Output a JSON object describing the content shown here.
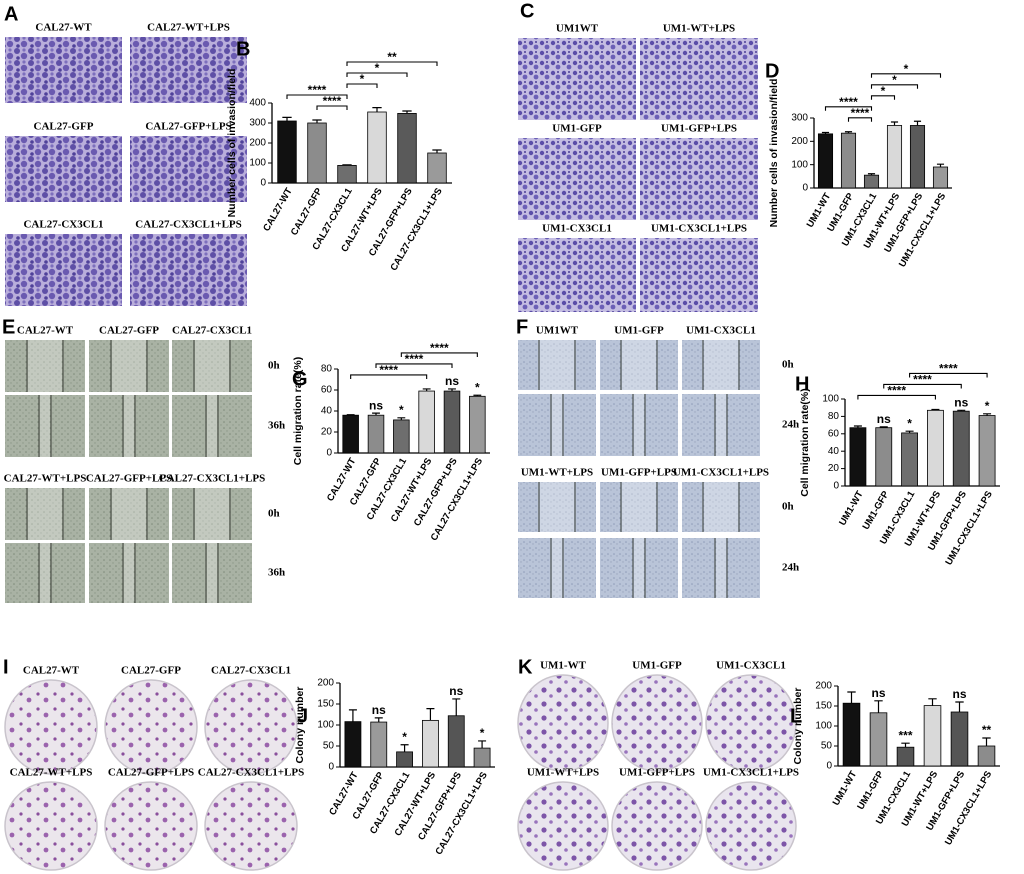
{
  "image_panels": [
    {
      "letter": "A",
      "labels": [
        "CAL27-WT",
        "CAL27-WT+LPS",
        "CAL27-GFP",
        "CAL27-GFP+LPS",
        "CAL27-CX3CL1",
        "CAL27-CX3CL1+LPS"
      ]
    },
    {
      "letter": "C",
      "labels": [
        "UM1WT",
        "UM1-WT+LPS",
        "UM1-GFP",
        "UM1-GFP+LPS",
        "UM1-CX3CL1",
        "UM1-CX3CL1+LPS"
      ]
    },
    {
      "letter": "E",
      "labels": [
        "CAL27-WT",
        "CAL27-GFP",
        "CAL27-CX3CL1",
        "CAL27-WT+LPS",
        "CAL27-GFP+LPS",
        "CAL27-CX3CL1+LPS"
      ],
      "times": [
        "0h",
        "36h",
        "0h",
        "36h"
      ]
    },
    {
      "letter": "F",
      "labels": [
        "UM1WT",
        "UM1-GFP",
        "UM1-CX3CL1",
        "UM1-WT+LPS",
        "UM1-GFP+LPS",
        "UM1-CX3CL1+LPS"
      ],
      "times": [
        "0h",
        "24h",
        "0h",
        "24h"
      ]
    },
    {
      "letter": "I",
      "labels": [
        "CAL27-WT",
        "CAL27-GFP",
        "CAL27-CX3CL1",
        "CAL27-WT+LPS",
        "CAL27-GFP+LPS",
        "CAL27-CX3CL1+LPS"
      ]
    },
    {
      "letter": "K",
      "labels": [
        "UM1-WT",
        "UM1-GFP",
        "UM1-CX3CL1",
        "UM1-WT+LPS",
        "UM1-GFP+LPS",
        "UM1-CX3CL1+LPS"
      ]
    }
  ],
  "chart_data": [
    {
      "type": "bar",
      "letter": "B",
      "ylabel": "Number cells of invasion/field",
      "categories": [
        "CAL27-WT",
        "CAL27-GFP",
        "CAL27-CX3CL1",
        "CAL27-WT+LPS",
        "CAL27-GFP+LPS",
        "CAL27-CX3CL1+LPS"
      ],
      "values": [
        310,
        300,
        88,
        355,
        348,
        150
      ],
      "errors": [
        18,
        15,
        3,
        22,
        12,
        15
      ],
      "colors": [
        "#111111",
        "#8c8c8c",
        "#6e6e6e",
        "#d9d9d9",
        "#5a5a5a",
        "#9a9a9a"
      ],
      "ylim": [
        0,
        400
      ],
      "yticks": [
        0,
        100,
        200,
        300,
        400
      ],
      "brackets": [
        {
          "from": 1,
          "to": 2,
          "text": "****"
        },
        {
          "from": 0,
          "to": 2,
          "text": "****"
        },
        {
          "from": 2,
          "to": 3,
          "text": "*"
        },
        {
          "from": 2,
          "to": 4,
          "text": "*"
        },
        {
          "from": 2,
          "to": 5,
          "text": "**"
        }
      ]
    },
    {
      "type": "bar",
      "letter": "D",
      "ylabel": "Number cells of invasion/field",
      "categories": [
        "UM1-WT",
        "UM1-GFP",
        "UM1-CX3CL1",
        "UM1-WT+LPS",
        "UM1-GFP+LPS",
        "UM1-CX3CL1+LPS"
      ],
      "values": [
        232,
        235,
        55,
        268,
        268,
        90
      ],
      "errors": [
        6,
        6,
        6,
        15,
        18,
        12
      ],
      "colors": [
        "#111111",
        "#8c8c8c",
        "#6e6e6e",
        "#d9d9d9",
        "#5a5a5a",
        "#9a9a9a"
      ],
      "ylim": [
        0,
        300
      ],
      "yticks": [
        0,
        100,
        200,
        300
      ],
      "brackets": [
        {
          "from": 1,
          "to": 2,
          "text": "****"
        },
        {
          "from": 0,
          "to": 2,
          "text": "****"
        },
        {
          "from": 2,
          "to": 3,
          "text": "*"
        },
        {
          "from": 2,
          "to": 4,
          "text": "*"
        },
        {
          "from": 2,
          "to": 5,
          "text": "*"
        }
      ]
    },
    {
      "type": "bar",
      "letter": "G",
      "ylabel": "Cell migration rate(%)",
      "categories": [
        "CAL27-WT",
        "CAL27-GFP",
        "CAL27-CX3CL1",
        "CAL27-WT+LPS",
        "CAL27-GFP+LPS",
        "CAL27-CX3CL1+LPS"
      ],
      "values": [
        36,
        36,
        31.5,
        59,
        59,
        54
      ],
      "errors": [
        0.5,
        2,
        2,
        2,
        2,
        1
      ],
      "colors": [
        "#111111",
        "#8c8c8c",
        "#6e6e6e",
        "#d9d9d9",
        "#5a5a5a",
        "#9a9a9a"
      ],
      "ylim": [
        0,
        80
      ],
      "yticks": [
        0,
        20,
        40,
        60,
        80
      ],
      "bar_labels": [
        null,
        "ns",
        "*",
        null,
        "ns",
        "*"
      ],
      "brackets": [
        {
          "from": 0,
          "to": 3,
          "text": "****"
        },
        {
          "from": 1,
          "to": 4,
          "text": "****"
        },
        {
          "from": 2,
          "to": 5,
          "text": "****"
        }
      ]
    },
    {
      "type": "bar",
      "letter": "H",
      "ylabel": "Cell migration rate(%)",
      "categories": [
        "UM1-WT",
        "UM1-GFP",
        "UM1-CX3CL1",
        "UM1-WT+LPS",
        "UM1-GFP+LPS",
        "UM1-CX3CL1+LPS"
      ],
      "values": [
        67,
        67,
        61,
        87,
        86,
        81
      ],
      "errors": [
        2,
        1,
        2,
        1,
        1,
        2
      ],
      "colors": [
        "#111111",
        "#8c8c8c",
        "#6e6e6e",
        "#d9d9d9",
        "#5a5a5a",
        "#9a9a9a"
      ],
      "ylim": [
        0,
        100
      ],
      "yticks": [
        0,
        20,
        40,
        60,
        80,
        100
      ],
      "bar_labels": [
        null,
        "ns",
        "*",
        null,
        "ns",
        "*"
      ],
      "brackets": [
        {
          "from": 0,
          "to": 3,
          "text": "****"
        },
        {
          "from": 1,
          "to": 4,
          "text": "****"
        },
        {
          "from": 2,
          "to": 5,
          "text": "****"
        }
      ]
    },
    {
      "type": "bar",
      "letter": "J",
      "ylabel": "Colony number",
      "categories": [
        "CAL27-WT",
        "CAL27-GFP",
        "CAL27-CX3CL1",
        "CAL27-WT+LPS",
        "CAL27-GFP+LPS",
        "CAL27-CX3CL1+LPS"
      ],
      "values": [
        108,
        107,
        36,
        111,
        122,
        45
      ],
      "errors": [
        28,
        10,
        17,
        28,
        40,
        17
      ],
      "colors": [
        "#111111",
        "#9a9a9a",
        "#555555",
        "#d9d9d9",
        "#555555",
        "#8c8c8c"
      ],
      "ylim": [
        0,
        200
      ],
      "yticks": [
        0,
        50,
        100,
        150,
        200
      ],
      "bar_labels": [
        null,
        "ns",
        "*",
        null,
        "ns",
        "*"
      ]
    },
    {
      "type": "bar",
      "letter": "L",
      "ylabel": "Colony number",
      "categories": [
        "UM1-WT",
        "UM1-GFP",
        "UM1-CX3CL1",
        "UM1-WT+LPS",
        "UM1-GFP+LPS",
        "UM1-CX3CL1+LPS"
      ],
      "values": [
        157,
        133,
        47,
        151,
        135,
        50
      ],
      "errors": [
        28,
        30,
        10,
        17,
        25,
        20
      ],
      "colors": [
        "#111111",
        "#9a9a9a",
        "#555555",
        "#d9d9d9",
        "#555555",
        "#8c8c8c"
      ],
      "ylim": [
        0,
        200
      ],
      "yticks": [
        0,
        50,
        100,
        150,
        200
      ],
      "bar_labels": [
        null,
        "ns",
        "***",
        null,
        "ns",
        "**"
      ]
    }
  ]
}
